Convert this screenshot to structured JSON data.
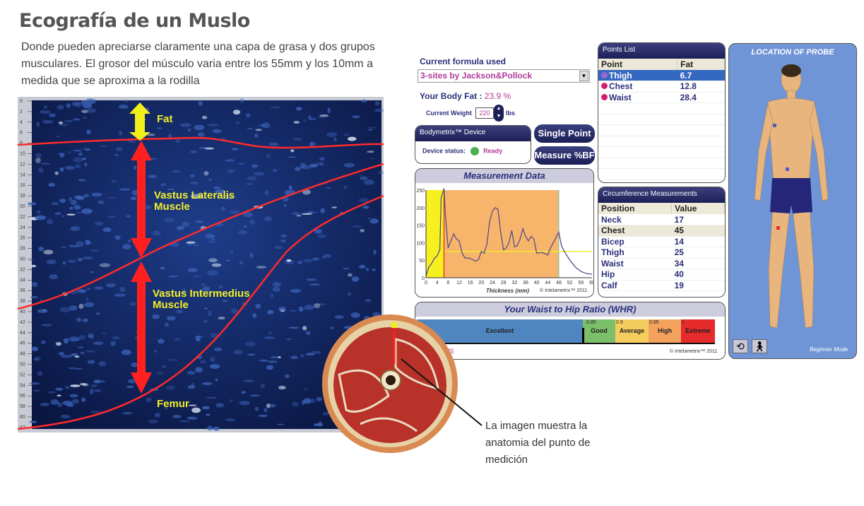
{
  "title": "Ecografía de un Muslo",
  "description": "Donde pueden apreciarse claramente una capa de grasa y dos grupos musculares. El grosor del músculo varia entre los 55mm y los 10mm a medida que se aproxima a la rodilla",
  "ultrasound": {
    "depth_ticks": [
      0,
      2,
      4,
      6,
      8,
      10,
      12,
      14,
      16,
      18,
      20,
      22,
      24,
      26,
      28,
      30,
      32,
      34,
      36,
      38,
      40,
      42,
      44,
      46,
      48,
      50,
      52,
      54,
      56,
      58,
      60,
      62
    ],
    "labels": {
      "fat": "Fat",
      "vl1": "Vastus Lateralis",
      "vl2": "Muscle",
      "vi1": "Vastus Intermedius",
      "vi2": "Muscle",
      "femur": "Femur"
    }
  },
  "caption": "La imagen muestra la anatomia del punto de medición",
  "app": {
    "formula_label": "Current formula used",
    "formula_value": "3-sites by Jackson&Pollock",
    "body_fat_label": "Your Body Fat :",
    "body_fat_value": "23.9 %",
    "weight_label": "Current Weight",
    "weight_value": "220",
    "weight_unit": "lbs",
    "device": {
      "title": "Bodymetrix™ Device",
      "status_label": "Device status:",
      "status_value": "Ready",
      "status_color": "#4caf50"
    },
    "single_point": "Single Point",
    "measure_bf": "Measure %BF",
    "points_list": {
      "title": "Points List",
      "headers": [
        "Point",
        "Fat"
      ],
      "rows": [
        {
          "point": "Thigh",
          "fat": "6.7"
        },
        {
          "point": "Chest",
          "fat": "12.8"
        },
        {
          "point": "Waist",
          "fat": "28.4"
        }
      ]
    },
    "circumference": {
      "title": "Circumference Measurements",
      "headers": [
        "Position",
        "Value"
      ],
      "rows": [
        {
          "position": "Neck",
          "value": "17"
        },
        {
          "position": "Chest",
          "value": "45"
        },
        {
          "position": "Bicep",
          "value": "14"
        },
        {
          "position": "Thigh",
          "value": "25"
        },
        {
          "position": "Waist",
          "value": "34"
        },
        {
          "position": "Hip",
          "value": "40"
        },
        {
          "position": "Calf",
          "value": "19"
        }
      ]
    },
    "measurement": {
      "title": "Measurement Data",
      "xlabel": "Thickness (mm)",
      "copyright": "© Intelametrix™ 2011"
    },
    "whr": {
      "title": "Your Waist to Hip Ratio (WHR)",
      "value_text": "s 0.85",
      "copyright": "© Intelametrix™ 2011",
      "segments": [
        {
          "label": "Excellent",
          "color": "#4f86c0"
        },
        {
          "label": "Good",
          "color": "#7cbf6a",
          "tick": "0.85"
        },
        {
          "label": "Average",
          "color": "#f5cc5e",
          "tick": "0.9"
        },
        {
          "label": "High",
          "color": "#f3a25e",
          "tick": "0.95"
        },
        {
          "label": "Extreme",
          "color": "#e52b2b",
          "tick": "1"
        }
      ],
      "marker": 0.85
    },
    "probe": {
      "title": "LOCATION OF PROBE",
      "mode": "Beginner Mode"
    }
  },
  "chart_data": {
    "type": "line",
    "title": "Measurement Data",
    "xlabel": "Thickness (mm)",
    "xlim": [
      0,
      60
    ],
    "ylim": [
      0,
      250
    ],
    "xticks": [
      0,
      4,
      8,
      12,
      16,
      20,
      24,
      28,
      32,
      36,
      40,
      44,
      48,
      52,
      56,
      60
    ],
    "yticks": [
      0,
      50,
      100,
      150,
      200,
      250
    ],
    "regions": [
      {
        "from": 0,
        "to": 6.5,
        "color": "#f5f01e"
      },
      {
        "from": 6.5,
        "to": 48,
        "color": "#f7b56b"
      }
    ],
    "threshold": 75,
    "marker_x": 6.5,
    "x": [
      0,
      1,
      2,
      3,
      4,
      5,
      5.5,
      6,
      6.5,
      7,
      8,
      9,
      10,
      11,
      12,
      13,
      14,
      16,
      18,
      19,
      20,
      21,
      22,
      23,
      24,
      25,
      26,
      27,
      28,
      29,
      30,
      31,
      32,
      33,
      34,
      35,
      36,
      37,
      38,
      39,
      40,
      42,
      44,
      45,
      46,
      47,
      48,
      49,
      50,
      52,
      54,
      56,
      58,
      60
    ],
    "y": [
      5,
      30,
      40,
      55,
      62,
      80,
      230,
      240,
      255,
      180,
      85,
      105,
      125,
      110,
      105,
      72,
      57,
      55,
      47,
      52,
      75,
      70,
      95,
      160,
      190,
      200,
      195,
      130,
      80,
      85,
      100,
      135,
      88,
      92,
      110,
      140,
      118,
      105,
      118,
      110,
      70,
      72,
      65,
      85,
      100,
      115,
      130,
      90,
      75,
      50,
      30,
      18,
      12,
      10
    ]
  }
}
